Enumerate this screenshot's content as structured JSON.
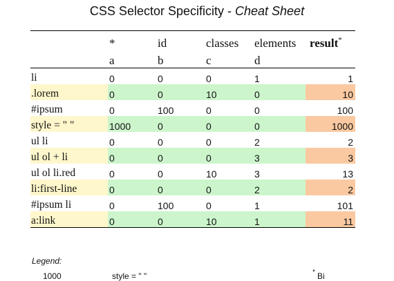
{
  "title": {
    "main": "CSS Selector Specificity - ",
    "italic": "Cheat Sheet"
  },
  "table": {
    "header": {
      "blank": "",
      "star": "*",
      "id": "id",
      "classes": "classes",
      "elements": "elements",
      "result": "result",
      "result_mark": "*"
    },
    "subheader": {
      "blank": "",
      "a": "a",
      "b": "b",
      "c": "c",
      "d": "d",
      "result": ""
    },
    "rows": [
      {
        "selector": "li",
        "a": "0",
        "b": "0",
        "c": "0",
        "d": "1",
        "result": "1",
        "highlight": false
      },
      {
        "selector": ".lorem",
        "a": "0",
        "b": "0",
        "c": "10",
        "d": "0",
        "result": "10",
        "highlight": true
      },
      {
        "selector": "#ipsum",
        "a": "0",
        "b": "100",
        "c": "0",
        "d": "0",
        "result": "100",
        "highlight": false
      },
      {
        "selector": "style = \" \"",
        "a": "1000",
        "b": "0",
        "c": "0",
        "d": "0",
        "result": "1000",
        "highlight": true
      },
      {
        "selector": "ul li",
        "a": "0",
        "b": "0",
        "c": "0",
        "d": "2",
        "result": "2",
        "highlight": false
      },
      {
        "selector": "ul ol + li",
        "a": "0",
        "b": "0",
        "c": "0",
        "d": "3",
        "result": "3",
        "highlight": true
      },
      {
        "selector": "ul ol li.red",
        "a": "0",
        "b": "0",
        "c": "10",
        "d": "3",
        "result": "13",
        "highlight": false
      },
      {
        "selector": "li:first-line",
        "a": "0",
        "b": "0",
        "c": "0",
        "d": "2",
        "result": "2",
        "highlight": true
      },
      {
        "selector": "#ipsum li",
        "a": "0",
        "b": "100",
        "c": "0",
        "d": "1",
        "result": "101",
        "highlight": false
      },
      {
        "selector": "a:link",
        "a": "0",
        "b": "0",
        "c": "10",
        "d": "1",
        "result": "11",
        "highlight": true
      }
    ]
  },
  "legend": {
    "label": "Legend:",
    "value_1000": "1000",
    "style_text": "style = \" \"",
    "footnote_mark": "*",
    "footnote_text": "Bi"
  },
  "colors": {
    "selector_highlight": "#fff7cc",
    "row_highlight": "#ccf5cc",
    "result_highlight": "#fac9a1"
  }
}
